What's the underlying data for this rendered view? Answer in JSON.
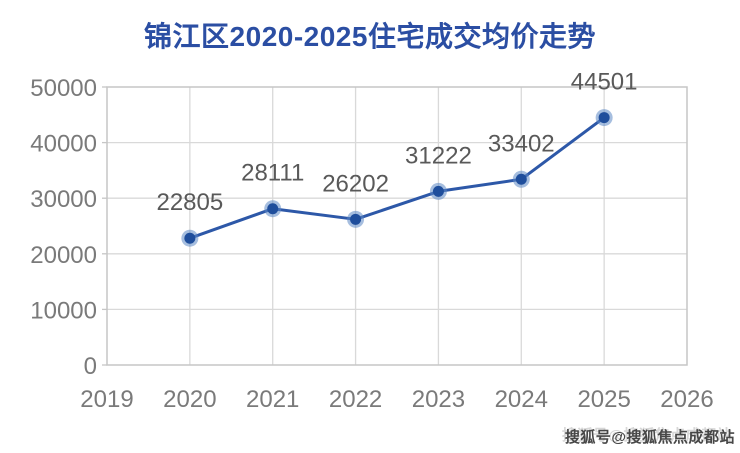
{
  "title": {
    "text": "锦江区2020-2025住宅成交均价走势",
    "color": "#2b4ea3"
  },
  "watermark": {
    "text": "搜狐号@搜狐焦点成都站"
  },
  "chart_data": {
    "type": "line",
    "title": "锦江区2020-2025住宅成交均价走势",
    "x": [
      2020,
      2021,
      2022,
      2023,
      2024,
      2025
    ],
    "values": [
      22805,
      28111,
      26202,
      31222,
      33402,
      44501
    ],
    "data_labels": [
      "22805",
      "28111",
      "26202",
      "31222",
      "33402",
      "44501"
    ],
    "xlabel": "",
    "ylabel": "",
    "xlim": [
      2019,
      2026
    ],
    "ylim": [
      0,
      50000
    ],
    "xticks": [
      2019,
      2020,
      2021,
      2022,
      2023,
      2024,
      2025,
      2026
    ],
    "yticks": [
      0,
      10000,
      20000,
      30000,
      40000,
      50000
    ],
    "grid": true,
    "legend": false,
    "line_color": "#2d58a8",
    "marker_color": "#1f4e9c",
    "marker_halo_color": "#5c88c5",
    "grid_color": "#d9d9d9",
    "border_color": "#c6c6c6",
    "axis_label_color": "#7a7a7a",
    "data_label_color": "#595959"
  }
}
